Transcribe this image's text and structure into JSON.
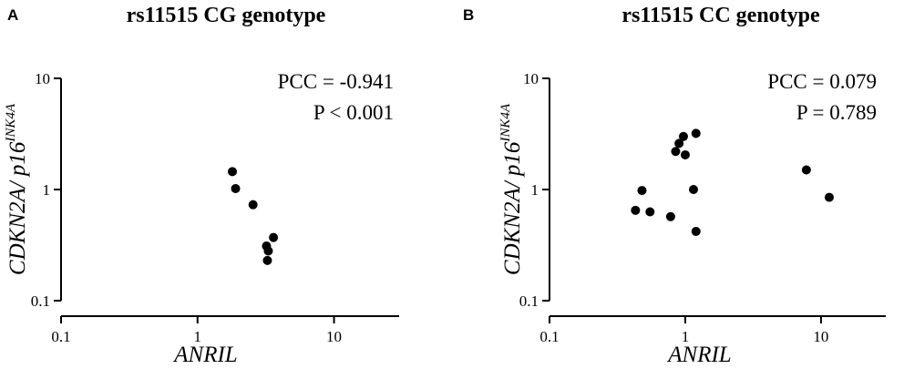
{
  "chart_data": [
    {
      "type": "scatter",
      "panel": "A",
      "title": "rs11515 CG genotype",
      "xlabel": "ANRIL",
      "ylabel": "CDKN2A/ p16",
      "ylabel_superscript": "INK4A",
      "xscale": "log",
      "yscale": "log",
      "xlim": [
        0.1,
        30
      ],
      "ylim": [
        0.1,
        10
      ],
      "xticks": [
        "0.1",
        "1",
        "10"
      ],
      "yticks": [
        "0.1",
        "1",
        "10"
      ],
      "annotations": [
        "PCC = -0.941",
        "P < 0.001"
      ],
      "grid": false,
      "points": [
        {
          "x": 1.8,
          "y": 1.45
        },
        {
          "x": 1.9,
          "y": 1.02
        },
        {
          "x": 2.55,
          "y": 0.73
        },
        {
          "x": 3.2,
          "y": 0.31
        },
        {
          "x": 3.3,
          "y": 0.28
        },
        {
          "x": 3.25,
          "y": 0.23
        },
        {
          "x": 3.6,
          "y": 0.37
        }
      ]
    },
    {
      "type": "scatter",
      "panel": "B",
      "title": "rs11515 CC genotype",
      "xlabel": "ANRIL",
      "ylabel": "CDKN2A/ p16",
      "ylabel_superscript": "INK4A",
      "xscale": "log",
      "yscale": "log",
      "xlim": [
        0.1,
        30
      ],
      "ylim": [
        0.1,
        10
      ],
      "xticks": [
        "0.1",
        "1",
        "10"
      ],
      "yticks": [
        "0.1",
        "1",
        "10"
      ],
      "annotations": [
        "PCC = 0.079",
        "P = 0.789"
      ],
      "grid": false,
      "points": [
        {
          "x": 0.43,
          "y": 0.65
        },
        {
          "x": 0.48,
          "y": 0.98
        },
        {
          "x": 0.55,
          "y": 0.63
        },
        {
          "x": 0.78,
          "y": 0.57
        },
        {
          "x": 0.85,
          "y": 2.2
        },
        {
          "x": 0.9,
          "y": 2.6
        },
        {
          "x": 0.97,
          "y": 3.0
        },
        {
          "x": 1.0,
          "y": 2.05
        },
        {
          "x": 1.15,
          "y": 1.0
        },
        {
          "x": 1.2,
          "y": 3.2
        },
        {
          "x": 1.2,
          "y": 0.42
        },
        {
          "x": 7.8,
          "y": 1.5
        },
        {
          "x": 11.5,
          "y": 0.85
        }
      ]
    }
  ]
}
